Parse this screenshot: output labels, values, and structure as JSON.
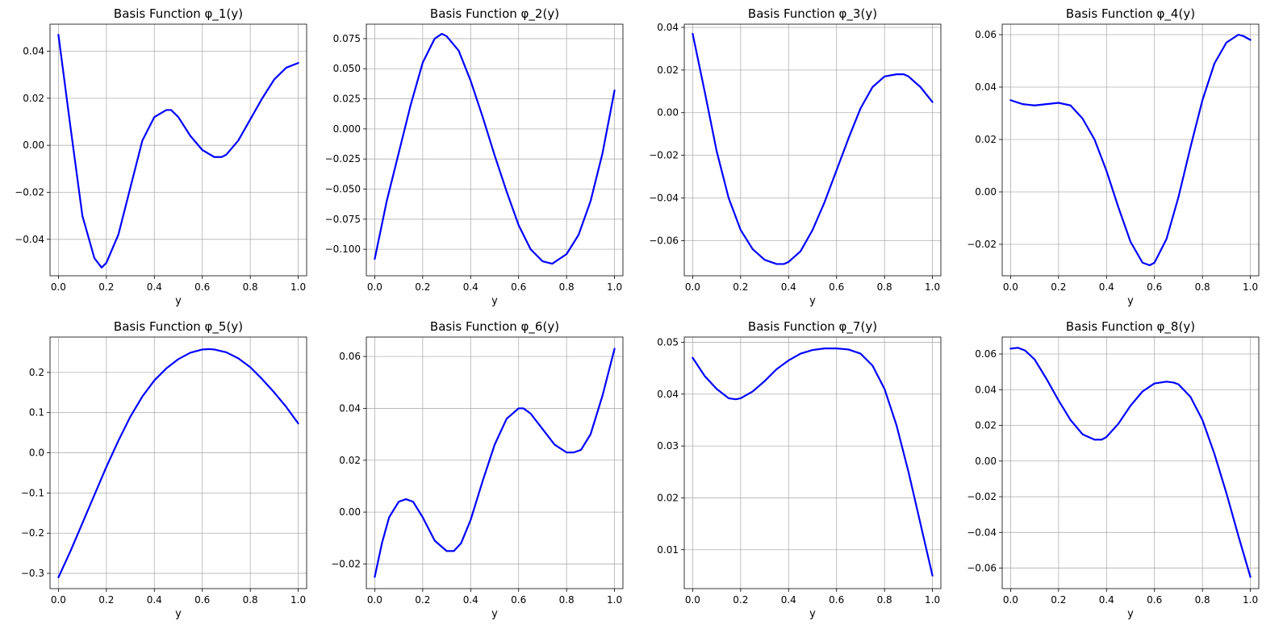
{
  "style": {
    "line_color": "#0000ff",
    "grid_color": "#b0b0b0"
  },
  "chart_data": [
    {
      "type": "line",
      "title": "Basis Function φ_1(y)",
      "xlabel": "y",
      "ylabel": "",
      "xlim": [
        -0.035,
        1.035
      ],
      "ylim": [
        -0.0555,
        0.0515
      ],
      "grid": true,
      "xticks": [
        0,
        0.2,
        0.4,
        0.6,
        0.8,
        1.0
      ],
      "xtick_labels": [
        "0.0",
        "0.2",
        "0.4",
        "0.6",
        "0.8",
        "1.0"
      ],
      "yticks": [
        -0.04,
        -0.02,
        0.0,
        0.02,
        0.04
      ],
      "ytick_labels": [
        "−0.04",
        "−0.02",
        "0.00",
        "0.02",
        "0.04"
      ],
      "series": [
        {
          "x": [
            0,
            0.05,
            0.1,
            0.15,
            0.18,
            0.2,
            0.25,
            0.3,
            0.35,
            0.4,
            0.45,
            0.47,
            0.5,
            0.55,
            0.6,
            0.65,
            0.68,
            0.7,
            0.75,
            0.8,
            0.85,
            0.9,
            0.95,
            1.0
          ],
          "y": [
            0.047,
            0.008,
            -0.03,
            -0.048,
            -0.052,
            -0.05,
            -0.038,
            -0.018,
            0.002,
            0.012,
            0.015,
            0.015,
            0.012,
            0.004,
            -0.002,
            -0.005,
            -0.005,
            -0.004,
            0.002,
            0.011,
            0.02,
            0.028,
            0.033,
            0.035
          ]
        }
      ]
    },
    {
      "type": "line",
      "title": "Basis Function φ_2(y)",
      "xlabel": "y",
      "ylabel": "",
      "xlim": [
        -0.035,
        1.035
      ],
      "ylim": [
        -0.122,
        0.087
      ],
      "grid": true,
      "xticks": [
        0,
        0.2,
        0.4,
        0.6,
        0.8,
        1.0
      ],
      "xtick_labels": [
        "0.0",
        "0.2",
        "0.4",
        "0.6",
        "0.8",
        "1.0"
      ],
      "yticks": [
        -0.1,
        -0.075,
        -0.05,
        -0.025,
        0.0,
        0.025,
        0.05,
        0.075
      ],
      "ytick_labels": [
        "−0.100",
        "−0.075",
        "−0.050",
        "−0.025",
        "0.000",
        "0.025",
        "0.050",
        "0.075"
      ],
      "series": [
        {
          "x": [
            0,
            0.05,
            0.1,
            0.15,
            0.2,
            0.25,
            0.28,
            0.3,
            0.35,
            0.4,
            0.45,
            0.5,
            0.55,
            0.6,
            0.65,
            0.7,
            0.74,
            0.8,
            0.85,
            0.9,
            0.95,
            1.0
          ],
          "y": [
            -0.108,
            -0.06,
            -0.02,
            0.02,
            0.055,
            0.075,
            0.079,
            0.077,
            0.065,
            0.04,
            0.01,
            -0.022,
            -0.052,
            -0.08,
            -0.1,
            -0.11,
            -0.112,
            -0.104,
            -0.088,
            -0.06,
            -0.02,
            0.032
          ]
        }
      ]
    },
    {
      "type": "line",
      "title": "Basis Function φ_3(y)",
      "xlabel": "y",
      "ylabel": "",
      "xlim": [
        -0.035,
        1.035
      ],
      "ylim": [
        -0.0765,
        0.0415
      ],
      "grid": true,
      "xticks": [
        0,
        0.2,
        0.4,
        0.6,
        0.8,
        1.0
      ],
      "xtick_labels": [
        "0.0",
        "0.2",
        "0.4",
        "0.6",
        "0.8",
        "1.0"
      ],
      "yticks": [
        -0.06,
        -0.04,
        -0.02,
        0.0,
        0.02,
        0.04
      ],
      "ytick_labels": [
        "−0.06",
        "−0.04",
        "−0.02",
        "0.00",
        "0.02",
        "0.04"
      ],
      "series": [
        {
          "x": [
            0,
            0.05,
            0.1,
            0.15,
            0.2,
            0.25,
            0.3,
            0.35,
            0.38,
            0.4,
            0.45,
            0.5,
            0.55,
            0.6,
            0.65,
            0.7,
            0.75,
            0.8,
            0.85,
            0.88,
            0.9,
            0.95,
            1.0
          ],
          "y": [
            0.037,
            0.01,
            -0.018,
            -0.04,
            -0.055,
            -0.064,
            -0.069,
            -0.071,
            -0.071,
            -0.07,
            -0.065,
            -0.055,
            -0.042,
            -0.027,
            -0.012,
            0.002,
            0.012,
            0.017,
            0.018,
            0.018,
            0.017,
            0.012,
            0.005
          ]
        }
      ]
    },
    {
      "type": "line",
      "title": "Basis Function φ_4(y)",
      "xlabel": "y",
      "ylabel": "",
      "xlim": [
        -0.035,
        1.035
      ],
      "ylim": [
        -0.032,
        0.064
      ],
      "grid": true,
      "xticks": [
        0,
        0.2,
        0.4,
        0.6,
        0.8,
        1.0
      ],
      "xtick_labels": [
        "0.0",
        "0.2",
        "0.4",
        "0.6",
        "0.8",
        "1.0"
      ],
      "yticks": [
        -0.02,
        0.0,
        0.02,
        0.04,
        0.06
      ],
      "ytick_labels": [
        "−0.02",
        "0.00",
        "0.02",
        "0.04",
        "0.06"
      ],
      "series": [
        {
          "x": [
            0,
            0.05,
            0.1,
            0.15,
            0.2,
            0.25,
            0.3,
            0.35,
            0.4,
            0.45,
            0.5,
            0.55,
            0.58,
            0.6,
            0.65,
            0.7,
            0.75,
            0.8,
            0.85,
            0.9,
            0.95,
            0.97,
            1.0
          ],
          "y": [
            0.035,
            0.0335,
            0.033,
            0.0335,
            0.034,
            0.033,
            0.028,
            0.02,
            0.008,
            -0.006,
            -0.019,
            -0.027,
            -0.028,
            -0.027,
            -0.018,
            -0.002,
            0.017,
            0.035,
            0.049,
            0.057,
            0.06,
            0.0595,
            0.058
          ]
        }
      ]
    },
    {
      "type": "line",
      "title": "Basis Function φ_5(y)",
      "xlabel": "y",
      "ylabel": "",
      "xlim": [
        -0.035,
        1.035
      ],
      "ylim": [
        -0.338,
        0.288
      ],
      "grid": true,
      "xticks": [
        0,
        0.2,
        0.4,
        0.6,
        0.8,
        1.0
      ],
      "xtick_labels": [
        "0.0",
        "0.2",
        "0.4",
        "0.6",
        "0.8",
        "1.0"
      ],
      "yticks": [
        -0.3,
        -0.2,
        -0.1,
        0.0,
        0.1,
        0.2
      ],
      "ytick_labels": [
        "−0.3",
        "−0.2",
        "−0.1",
        "0.0",
        "0.1",
        "0.2"
      ],
      "series": [
        {
          "x": [
            0,
            0.05,
            0.1,
            0.15,
            0.2,
            0.25,
            0.3,
            0.35,
            0.4,
            0.45,
            0.5,
            0.55,
            0.6,
            0.63,
            0.65,
            0.7,
            0.75,
            0.8,
            0.85,
            0.9,
            0.95,
            1.0
          ],
          "y": [
            -0.31,
            -0.245,
            -0.175,
            -0.105,
            -0.035,
            0.03,
            0.09,
            0.14,
            0.18,
            0.21,
            0.233,
            0.249,
            0.257,
            0.258,
            0.257,
            0.25,
            0.235,
            0.213,
            0.183,
            0.15,
            0.114,
            0.073
          ]
        }
      ]
    },
    {
      "type": "line",
      "title": "Basis Function φ_6(y)",
      "xlabel": "y",
      "ylabel": "",
      "xlim": [
        -0.035,
        1.035
      ],
      "ylim": [
        -0.0295,
        0.0675
      ],
      "grid": true,
      "xticks": [
        0,
        0.2,
        0.4,
        0.6,
        0.8,
        1.0
      ],
      "xtick_labels": [
        "0.0",
        "0.2",
        "0.4",
        "0.6",
        "0.8",
        "1.0"
      ],
      "yticks": [
        -0.02,
        0.0,
        0.02,
        0.04,
        0.06
      ],
      "ytick_labels": [
        "−0.02",
        "0.00",
        "0.02",
        "0.04",
        "0.06"
      ],
      "series": [
        {
          "x": [
            0,
            0.03,
            0.06,
            0.1,
            0.13,
            0.16,
            0.2,
            0.25,
            0.3,
            0.33,
            0.36,
            0.4,
            0.45,
            0.5,
            0.55,
            0.6,
            0.62,
            0.65,
            0.7,
            0.75,
            0.8,
            0.83,
            0.86,
            0.9,
            0.95,
            1.0
          ],
          "y": [
            -0.025,
            -0.012,
            -0.002,
            0.004,
            0.005,
            0.004,
            -0.002,
            -0.011,
            -0.015,
            -0.015,
            -0.012,
            -0.003,
            0.012,
            0.026,
            0.036,
            0.04,
            0.04,
            0.038,
            0.032,
            0.026,
            0.023,
            0.023,
            0.024,
            0.03,
            0.045,
            0.063
          ]
        }
      ]
    },
    {
      "type": "line",
      "title": "Basis Function φ_7(y)",
      "xlabel": "y",
      "ylabel": "",
      "xlim": [
        -0.035,
        1.035
      ],
      "ylim": [
        0.0025,
        0.051
      ],
      "grid": true,
      "xticks": [
        0,
        0.2,
        0.4,
        0.6,
        0.8,
        1.0
      ],
      "xtick_labels": [
        "0.0",
        "0.2",
        "0.4",
        "0.6",
        "0.8",
        "1.0"
      ],
      "yticks": [
        0.01,
        0.02,
        0.03,
        0.04,
        0.05
      ],
      "ytick_labels": [
        "0.01",
        "0.02",
        "0.03",
        "0.04",
        "0.05"
      ],
      "series": [
        {
          "x": [
            0,
            0.05,
            0.1,
            0.15,
            0.18,
            0.2,
            0.25,
            0.3,
            0.35,
            0.4,
            0.45,
            0.5,
            0.55,
            0.6,
            0.65,
            0.7,
            0.75,
            0.8,
            0.85,
            0.9,
            0.95,
            1.0
          ],
          "y": [
            0.047,
            0.0435,
            0.041,
            0.0392,
            0.039,
            0.0392,
            0.0405,
            0.0425,
            0.0448,
            0.0465,
            0.0478,
            0.0485,
            0.0488,
            0.0488,
            0.0486,
            0.0478,
            0.0455,
            0.041,
            0.034,
            0.025,
            0.015,
            0.005
          ]
        }
      ]
    },
    {
      "type": "line",
      "title": "Basis Function φ_8(y)",
      "xlabel": "y",
      "ylabel": "",
      "xlim": [
        -0.035,
        1.035
      ],
      "ylim": [
        -0.0715,
        0.0695
      ],
      "grid": true,
      "xticks": [
        0,
        0.2,
        0.4,
        0.6,
        0.8,
        1.0
      ],
      "xtick_labels": [
        "0.0",
        "0.2",
        "0.4",
        "0.6",
        "0.8",
        "1.0"
      ],
      "yticks": [
        -0.06,
        -0.04,
        -0.02,
        0.0,
        0.02,
        0.04,
        0.06
      ],
      "ytick_labels": [
        "−0.06",
        "−0.04",
        "−0.02",
        "0.00",
        "0.02",
        "0.04",
        "0.06"
      ],
      "series": [
        {
          "x": [
            0,
            0.03,
            0.06,
            0.1,
            0.15,
            0.2,
            0.25,
            0.3,
            0.35,
            0.38,
            0.4,
            0.45,
            0.5,
            0.55,
            0.6,
            0.65,
            0.68,
            0.7,
            0.75,
            0.8,
            0.85,
            0.9,
            0.95,
            1.0
          ],
          "y": [
            0.063,
            0.0635,
            0.062,
            0.057,
            0.046,
            0.034,
            0.023,
            0.015,
            0.012,
            0.012,
            0.0135,
            0.021,
            0.031,
            0.039,
            0.0435,
            0.0445,
            0.044,
            0.043,
            0.036,
            0.023,
            0.004,
            -0.018,
            -0.042,
            -0.065
          ]
        }
      ]
    }
  ]
}
